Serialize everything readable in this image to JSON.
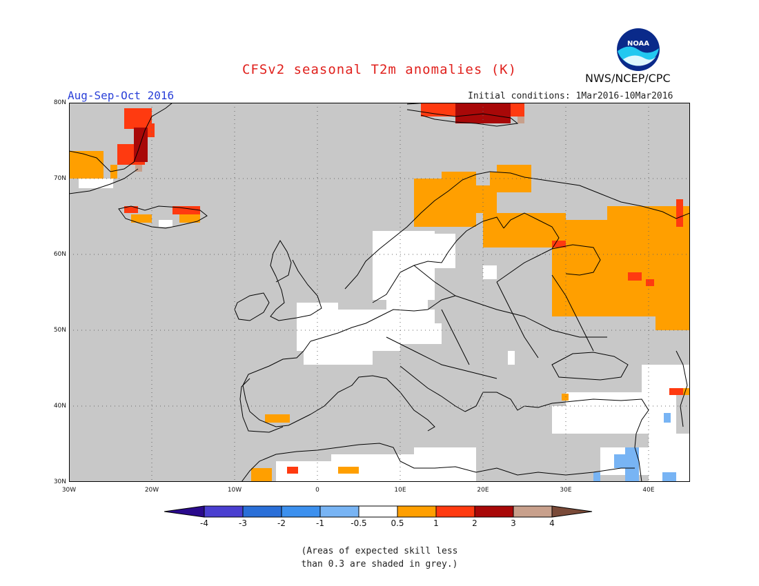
{
  "title": "CFSv2 seasonal T2m anomalies (K)",
  "season": "Aug-Sep-Oct 2016",
  "initial_conditions": "Initial conditions: 1Mar2016-10Mar2016",
  "agency": "NWS/NCEP/CPC",
  "logo_text": "NOAA",
  "lat_labels": [
    "80N",
    "70N",
    "60N",
    "50N",
    "40N",
    "30N"
  ],
  "lon_labels": [
    "30W",
    "20W",
    "10W",
    "0",
    "10E",
    "20E",
    "30E",
    "40E"
  ],
  "colorbar": {
    "labels": [
      "-4",
      "-3",
      "-2",
      "-1",
      "-0.5",
      "0.5",
      "1",
      "2",
      "3",
      "4"
    ],
    "colors": [
      "#2a0a8c",
      "#4a3fd0",
      "#2a6fd8",
      "#3c90ee",
      "#78b4f4",
      "#ffffff",
      "#ff9f00",
      "#ff3a10",
      "#a80808",
      "#c8a08c",
      "#7a4a38"
    ]
  },
  "colors": {
    "grey_skill": "#c8c8c8",
    "orange": "#ff9f00",
    "red": "#ff3a10",
    "darkred": "#a80808",
    "white": "#ffffff",
    "lightblue": "#78b4f4",
    "tan": "#c8a08c"
  },
  "note_line1": "(Areas of expected skill less",
  "note_line2": "than 0.3 are shaded in grey.)"
}
